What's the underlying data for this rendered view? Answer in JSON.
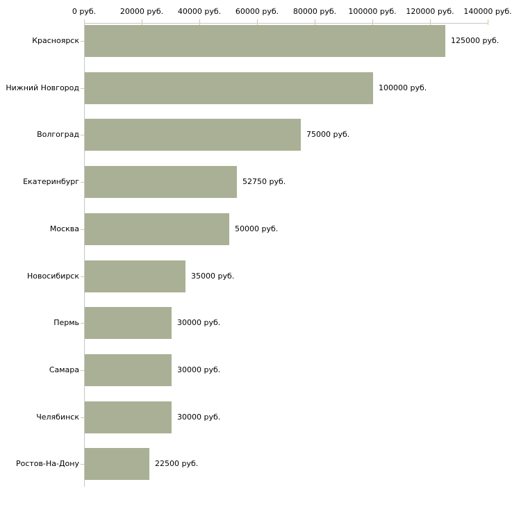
{
  "chart_data": {
    "type": "bar",
    "orientation": "horizontal",
    "title": "",
    "xlabel": "",
    "ylabel": "",
    "categories": [
      "Красноярск",
      "Нижний Новгород",
      "Волгоград",
      "Екатеринбург",
      "Москва",
      "Новосибирск",
      "Пермь",
      "Самара",
      "Челябинск",
      "Ростов-На-Дону"
    ],
    "values": [
      125000,
      100000,
      75000,
      52750,
      50000,
      35000,
      30000,
      30000,
      30000,
      22500
    ],
    "value_labels": [
      "125000 руб.",
      "100000 руб.",
      "75000 руб.",
      "52750 руб.",
      "50000 руб.",
      "35000 руб.",
      "30000 руб.",
      "30000 руб.",
      "30000 руб.",
      "22500 руб."
    ],
    "x_axis": {
      "position": "top",
      "min": 0,
      "max": 140000,
      "tick_step": 20000,
      "tick_values": [
        0,
        20000,
        40000,
        60000,
        80000,
        100000,
        120000,
        140000
      ],
      "tick_labels": [
        "0 руб.",
        "20000 руб.",
        "40000 руб.",
        "60000 руб.",
        "80000 руб.",
        "100000 руб.",
        "120000 руб.",
        "140000 руб."
      ]
    },
    "grid": false,
    "legend": false,
    "colors": {
      "bar": "#aab095",
      "axis_line": "#c6c6c6",
      "tick": "#ccca9e",
      "text": "#000000",
      "background": "#ffffff"
    }
  }
}
